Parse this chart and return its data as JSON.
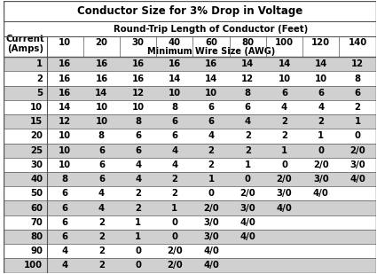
{
  "title": "Conductor Size for 3% Drop in Voltage",
  "col_header_line1": "Round-Trip Length of Conductor (Feet)",
  "col_header_line2": "Minimum Wire Size (AWG)",
  "row_header": "Current\n(Amps)",
  "columns": [
    "10",
    "20",
    "30",
    "40",
    "60",
    "80",
    "100",
    "120",
    "140"
  ],
  "rows": [
    {
      "amp": "1",
      "vals": [
        "16",
        "16",
        "16",
        "16",
        "16",
        "14",
        "14",
        "14",
        "12"
      ]
    },
    {
      "amp": "2",
      "vals": [
        "16",
        "16",
        "16",
        "14",
        "14",
        "12",
        "10",
        "10",
        "8"
      ]
    },
    {
      "amp": "5",
      "vals": [
        "16",
        "14",
        "12",
        "10",
        "10",
        "8",
        "6",
        "6",
        "6"
      ]
    },
    {
      "amp": "10",
      "vals": [
        "14",
        "10",
        "10",
        "8",
        "6",
        "6",
        "4",
        "4",
        "2"
      ]
    },
    {
      "amp": "15",
      "vals": [
        "12",
        "10",
        "8",
        "6",
        "6",
        "4",
        "2",
        "2",
        "1"
      ]
    },
    {
      "amp": "20",
      "vals": [
        "10",
        "8",
        "6",
        "6",
        "4",
        "2",
        "2",
        "1",
        "0"
      ]
    },
    {
      "amp": "25",
      "vals": [
        "10",
        "6",
        "6",
        "4",
        "2",
        "2",
        "1",
        "0",
        "2/0"
      ]
    },
    {
      "amp": "30",
      "vals": [
        "10",
        "6",
        "4",
        "4",
        "2",
        "1",
        "0",
        "2/0",
        "3/0"
      ]
    },
    {
      "amp": "40",
      "vals": [
        "8",
        "6",
        "4",
        "2",
        "1",
        "0",
        "2/0",
        "3/0",
        "4/0"
      ]
    },
    {
      "amp": "50",
      "vals": [
        "6",
        "4",
        "2",
        "2",
        "0",
        "2/0",
        "3/0",
        "4/0",
        ""
      ]
    },
    {
      "amp": "60",
      "vals": [
        "6",
        "4",
        "2",
        "1",
        "2/0",
        "3/0",
        "4/0",
        "",
        ""
      ]
    },
    {
      "amp": "70",
      "vals": [
        "6",
        "2",
        "1",
        "0",
        "3/0",
        "4/0",
        "",
        "",
        ""
      ]
    },
    {
      "amp": "80",
      "vals": [
        "6",
        "2",
        "1",
        "0",
        "3/0",
        "4/0",
        "",
        "",
        ""
      ]
    },
    {
      "amp": "90",
      "vals": [
        "4",
        "2",
        "0",
        "2/0",
        "4/0",
        "",
        "",
        "",
        ""
      ]
    },
    {
      "amp": "100",
      "vals": [
        "4",
        "2",
        "0",
        "2/0",
        "4/0",
        "",
        "",
        "",
        ""
      ]
    }
  ],
  "stripe_color": "#d0d0d0",
  "header_bg": "#ffffff",
  "text_color": "#000000",
  "bold_rows": [
    0,
    2,
    4,
    6,
    8,
    10,
    12,
    14
  ],
  "line_color": "#555555"
}
